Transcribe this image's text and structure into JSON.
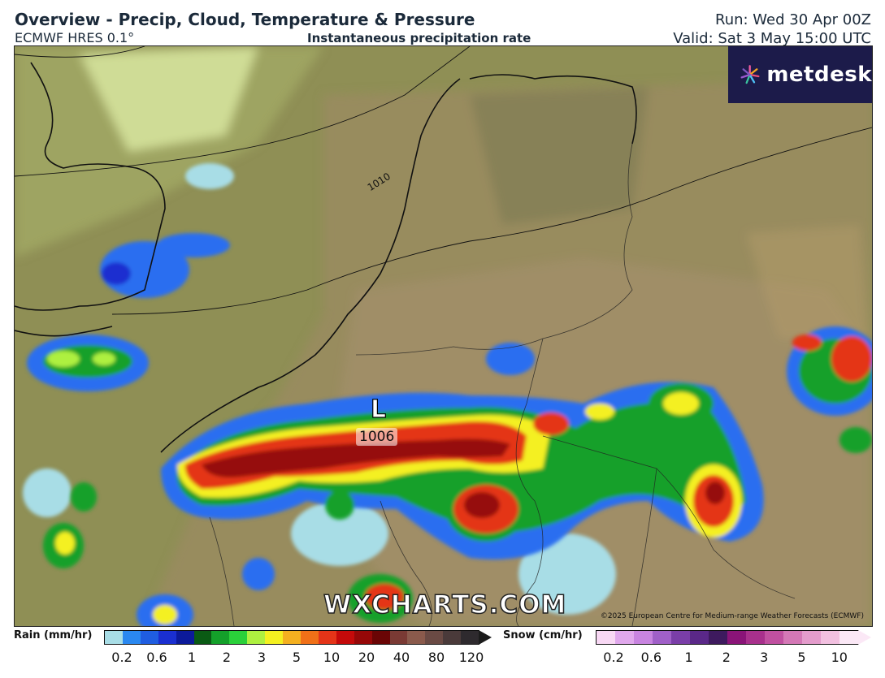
{
  "header": {
    "title": "Overview - Precip, Cloud, Temperature & Pressure",
    "model": "ECMWF HRES 0.1°",
    "subtitle": "Instantaneous precipitation rate",
    "run": "Run: Wed 30 Apr 00Z",
    "valid": "Valid: Sat 3 May 15:00 UTC"
  },
  "logo": {
    "text": "metdesk",
    "icon": "metdesk-flower-icon"
  },
  "map": {
    "low_marker": "L",
    "low_pressure": "1006",
    "isobar_label": "1010",
    "watermark": "WXCHARTS.COM",
    "copyright": "©2025 European Centre for Medium-range Weather Forecasts (ECMWF)"
  },
  "legend": {
    "rain": {
      "label": "Rain (mm/hr)",
      "ticks": [
        "0.2",
        "0.6",
        "1",
        "2",
        "3",
        "5",
        "10",
        "20",
        "40",
        "80",
        "120"
      ],
      "colors": [
        "#a8dde6",
        "#2a88f0",
        "#1f5de0",
        "#1a2fd0",
        "#0c1a9a",
        "#0a5a14",
        "#14a02a",
        "#2ad03a",
        "#aef040",
        "#f4f020",
        "#f4b020",
        "#f07018",
        "#e43418",
        "#c40a0a",
        "#960808",
        "#6a0505",
        "#7a3a34",
        "#8a5a4c",
        "#6a4a44",
        "#4a3a3a",
        "#2e2a2e"
      ]
    },
    "snow": {
      "label": "Snow (cm/hr)",
      "ticks": [
        "0.2",
        "0.6",
        "1",
        "2",
        "3",
        "5",
        "10"
      ],
      "colors": [
        "#f8d8f4",
        "#e0a8ec",
        "#c884e0",
        "#a060c8",
        "#7a3ea8",
        "#5a2888",
        "#3e1a5e",
        "#8a1478",
        "#a8308c",
        "#c050a0",
        "#d478b6",
        "#e49ccc",
        "#f2c0e0",
        "#fbe8f6"
      ]
    }
  },
  "colors": {
    "title": "#1b2a3a",
    "logo_bg": "#1c1b4a"
  }
}
